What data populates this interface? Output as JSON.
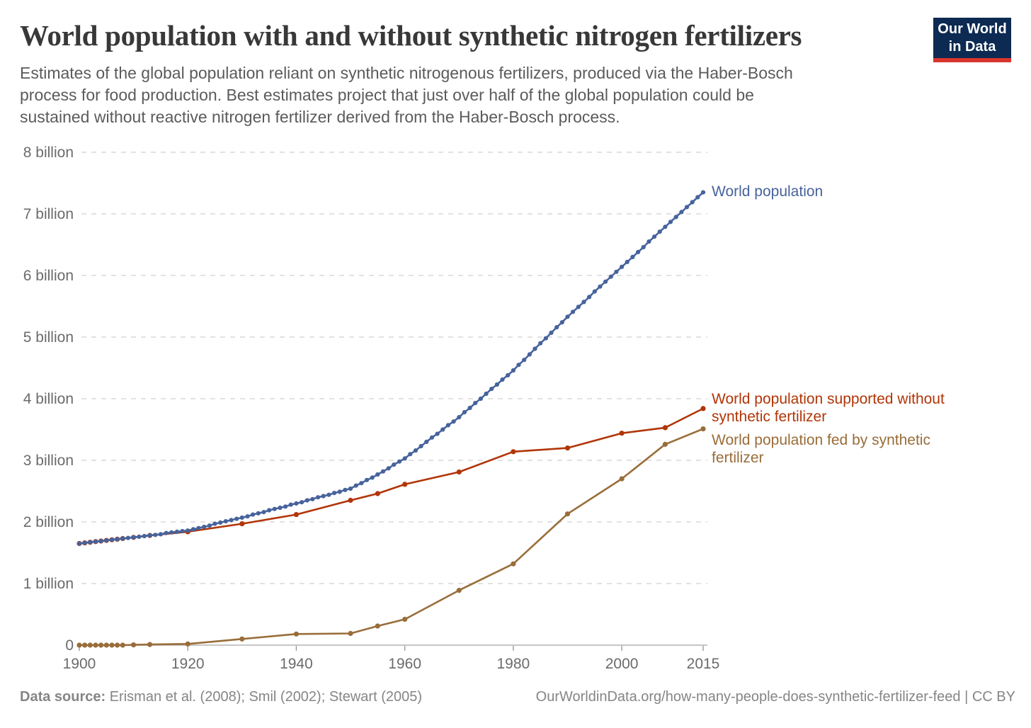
{
  "header": {
    "title": "World population with and without synthetic nitrogen fertilizers",
    "subtitle_lines": [
      "Estimates of the global population reliant on synthetic nitrogenous fertilizers, produced via the Haber-Bosch",
      "process for food production. Best estimates project that just over half of the global population could be",
      "sustained without reactive nitrogen fertilizer derived from the Haber-Bosch process."
    ]
  },
  "logo": {
    "line1": "Our World",
    "line2": "in Data",
    "bg_color": "#0c2a52",
    "bar_color": "#d9352c"
  },
  "footer": {
    "data_source_label": "Data source:",
    "data_source_text": " Erisman et al. (2008); Smil (2002); Stewart (2005)",
    "link_text": "OurWorldinData.org/how-many-people-does-synthetic-fertilizer-feed | CC BY"
  },
  "chart_data": {
    "type": "line",
    "title": "World population with and without synthetic nitrogen fertilizers",
    "xlabel": "",
    "ylabel": "",
    "unit": "billion people",
    "xlim": [
      1900,
      2015
    ],
    "ylim": [
      0,
      8
    ],
    "grid": "horizontal dashed",
    "legend_position": "labels right of line ends",
    "x_axis": {
      "ticks": [
        {
          "value": 1900,
          "label": "1900"
        },
        {
          "value": 1920,
          "label": "1920"
        },
        {
          "value": 1940,
          "label": "1940"
        },
        {
          "value": 1960,
          "label": "1960"
        },
        {
          "value": 1980,
          "label": "1980"
        },
        {
          "value": 2000,
          "label": "2000"
        },
        {
          "value": 2015,
          "label": "2015"
        }
      ]
    },
    "y_axis": {
      "ticks": [
        {
          "value": 0,
          "label": "0"
        },
        {
          "value": 1,
          "label": "1 billion"
        },
        {
          "value": 2,
          "label": "2 billion"
        },
        {
          "value": 3,
          "label": "3 billion"
        },
        {
          "value": 4,
          "label": "4 billion"
        },
        {
          "value": 5,
          "label": "5 billion"
        },
        {
          "value": 6,
          "label": "6 billion"
        },
        {
          "value": 7,
          "label": "7 billion"
        },
        {
          "value": 8,
          "label": "8 billion"
        }
      ]
    },
    "series": [
      {
        "name": "World population",
        "label_lines": [
          "World population"
        ],
        "color": "#47639c",
        "marker": "circle",
        "points": [
          [
            1900,
            1.65
          ],
          [
            1901,
            1.66
          ],
          [
            1902,
            1.67
          ],
          [
            1903,
            1.68
          ],
          [
            1904,
            1.69
          ],
          [
            1905,
            1.7
          ],
          [
            1906,
            1.71
          ],
          [
            1907,
            1.72
          ],
          [
            1908,
            1.73
          ],
          [
            1909,
            1.74
          ],
          [
            1910,
            1.75
          ],
          [
            1911,
            1.76
          ],
          [
            1912,
            1.77
          ],
          [
            1913,
            1.78
          ],
          [
            1914,
            1.79
          ],
          [
            1915,
            1.8
          ],
          [
            1916,
            1.82
          ],
          [
            1917,
            1.83
          ],
          [
            1918,
            1.84
          ],
          [
            1919,
            1.85
          ],
          [
            1920,
            1.86
          ],
          [
            1921,
            1.88
          ],
          [
            1922,
            1.9
          ],
          [
            1923,
            1.92
          ],
          [
            1924,
            1.94
          ],
          [
            1925,
            1.97
          ],
          [
            1926,
            1.99
          ],
          [
            1927,
            2.01
          ],
          [
            1928,
            2.03
          ],
          [
            1929,
            2.05
          ],
          [
            1930,
            2.07
          ],
          [
            1931,
            2.09
          ],
          [
            1932,
            2.12
          ],
          [
            1933,
            2.14
          ],
          [
            1934,
            2.16
          ],
          [
            1935,
            2.19
          ],
          [
            1936,
            2.21
          ],
          [
            1937,
            2.23
          ],
          [
            1938,
            2.25
          ],
          [
            1939,
            2.28
          ],
          [
            1940,
            2.3
          ],
          [
            1941,
            2.32
          ],
          [
            1942,
            2.35
          ],
          [
            1943,
            2.37
          ],
          [
            1944,
            2.4
          ],
          [
            1945,
            2.42
          ],
          [
            1946,
            2.44
          ],
          [
            1947,
            2.47
          ],
          [
            1948,
            2.49
          ],
          [
            1949,
            2.52
          ],
          [
            1950,
            2.54
          ],
          [
            1951,
            2.59
          ],
          [
            1952,
            2.63
          ],
          [
            1953,
            2.68
          ],
          [
            1954,
            2.72
          ],
          [
            1955,
            2.77
          ],
          [
            1956,
            2.82
          ],
          [
            1957,
            2.87
          ],
          [
            1958,
            2.93
          ],
          [
            1959,
            2.98
          ],
          [
            1960,
            3.03
          ],
          [
            1961,
            3.1
          ],
          [
            1962,
            3.16
          ],
          [
            1963,
            3.23
          ],
          [
            1964,
            3.3
          ],
          [
            1965,
            3.37
          ],
          [
            1966,
            3.43
          ],
          [
            1967,
            3.5
          ],
          [
            1968,
            3.57
          ],
          [
            1969,
            3.63
          ],
          [
            1970,
            3.7
          ],
          [
            1971,
            3.78
          ],
          [
            1972,
            3.85
          ],
          [
            1973,
            3.93
          ],
          [
            1974,
            4.0
          ],
          [
            1975,
            4.08
          ],
          [
            1976,
            4.16
          ],
          [
            1977,
            4.23
          ],
          [
            1978,
            4.31
          ],
          [
            1979,
            4.38
          ],
          [
            1980,
            4.46
          ],
          [
            1981,
            4.55
          ],
          [
            1982,
            4.63
          ],
          [
            1983,
            4.72
          ],
          [
            1984,
            4.81
          ],
          [
            1985,
            4.9
          ],
          [
            1986,
            4.98
          ],
          [
            1987,
            5.07
          ],
          [
            1988,
            5.16
          ],
          [
            1989,
            5.24
          ],
          [
            1990,
            5.33
          ],
          [
            1991,
            5.41
          ],
          [
            1992,
            5.49
          ],
          [
            1993,
            5.57
          ],
          [
            1994,
            5.65
          ],
          [
            1995,
            5.74
          ],
          [
            1996,
            5.82
          ],
          [
            1997,
            5.9
          ],
          [
            1998,
            5.98
          ],
          [
            1999,
            6.06
          ],
          [
            2000,
            6.14
          ],
          [
            2001,
            6.22
          ],
          [
            2002,
            6.3
          ],
          [
            2003,
            6.38
          ],
          [
            2004,
            6.46
          ],
          [
            2005,
            6.55
          ],
          [
            2006,
            6.63
          ],
          [
            2007,
            6.71
          ],
          [
            2008,
            6.79
          ],
          [
            2009,
            6.87
          ],
          [
            2010,
            6.95
          ],
          [
            2011,
            7.03
          ],
          [
            2012,
            7.11
          ],
          [
            2013,
            7.19
          ],
          [
            2014,
            7.27
          ],
          [
            2015,
            7.35
          ]
        ]
      },
      {
        "name": "World population supported without synthetic fertilizer",
        "label_lines": [
          "World population supported without",
          "synthetic fertilizer"
        ],
        "color": "#b13507",
        "marker": "circle",
        "points": [
          [
            1900,
            1.65
          ],
          [
            1901,
            1.66
          ],
          [
            1902,
            1.67
          ],
          [
            1903,
            1.68
          ],
          [
            1904,
            1.69
          ],
          [
            1905,
            1.7
          ],
          [
            1906,
            1.71
          ],
          [
            1907,
            1.72
          ],
          [
            1908,
            1.73
          ],
          [
            1910,
            1.75
          ],
          [
            1913,
            1.78
          ],
          [
            1920,
            1.84
          ],
          [
            1930,
            1.97
          ],
          [
            1940,
            2.12
          ],
          [
            1950,
            2.35
          ],
          [
            1955,
            2.46
          ],
          [
            1960,
            2.61
          ],
          [
            1970,
            2.81
          ],
          [
            1980,
            3.14
          ],
          [
            1990,
            3.2
          ],
          [
            2000,
            3.44
          ],
          [
            2008,
            3.53
          ],
          [
            2015,
            3.84
          ]
        ]
      },
      {
        "name": "World population fed by synthetic fertilizer",
        "label_lines": [
          "World population fed by synthetic",
          "fertilizer"
        ],
        "color": "#996d39",
        "marker": "circle",
        "points": [
          [
            1900,
            0
          ],
          [
            1901,
            0
          ],
          [
            1902,
            0
          ],
          [
            1903,
            0
          ],
          [
            1904,
            0
          ],
          [
            1905,
            0
          ],
          [
            1906,
            0
          ],
          [
            1907,
            0
          ],
          [
            1908,
            0
          ],
          [
            1910,
            0.005
          ],
          [
            1913,
            0.01
          ],
          [
            1920,
            0.02
          ],
          [
            1930,
            0.1
          ],
          [
            1940,
            0.18
          ],
          [
            1950,
            0.19
          ],
          [
            1955,
            0.31
          ],
          [
            1960,
            0.42
          ],
          [
            1970,
            0.89
          ],
          [
            1980,
            1.32
          ],
          [
            1990,
            2.13
          ],
          [
            2000,
            2.7
          ],
          [
            2008,
            3.26
          ],
          [
            2015,
            3.51
          ]
        ]
      }
    ]
  }
}
